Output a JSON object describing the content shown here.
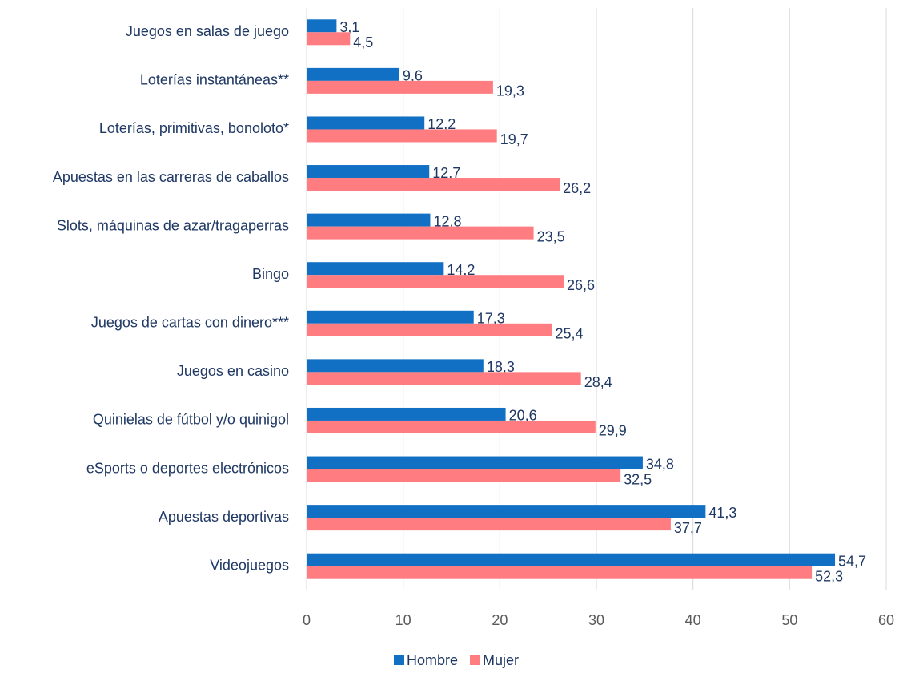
{
  "chart_data": {
    "type": "bar",
    "orientation": "horizontal",
    "categories": [
      "Juegos en salas de juego",
      "Loterías instantáneas**",
      "Loterías, primitivas, bonoloto*",
      "Apuestas en las carreras de caballos",
      "Slots, máquinas de azar/tragaperras",
      "Bingo",
      "Juegos de cartas con dinero***",
      "Juegos en casino",
      "Quinielas de fútbol y/o quinigol",
      "eSports o deportes electrónicos",
      "Apuestas deportivas",
      "Videojuegos"
    ],
    "series": [
      {
        "name": "Hombre",
        "color": "#1170c4",
        "values": [
          3.1,
          9.6,
          12.2,
          12.7,
          12.8,
          14.2,
          17.3,
          18.3,
          20.6,
          34.8,
          41.3,
          54.7
        ],
        "value_labels": [
          "3,1",
          "9,6",
          "12,2",
          "12,7",
          "12,8",
          "14,2",
          "17,3",
          "18,3",
          "20,6",
          "34,8",
          "41,3",
          "54,7"
        ]
      },
      {
        "name": "Mujer",
        "color": "#ff7c80",
        "values": [
          4.5,
          19.3,
          19.7,
          26.2,
          23.5,
          26.6,
          25.4,
          28.4,
          29.9,
          32.5,
          37.7,
          52.3
        ],
        "value_labels": [
          "4,5",
          "19,3",
          "19,7",
          "26,2",
          "23,5",
          "26,6",
          "25,4",
          "28,4",
          "29,9",
          "32,5",
          "37,7",
          "52,3"
        ]
      }
    ],
    "xlim": [
      0,
      60
    ],
    "xticks": [
      0,
      10,
      20,
      30,
      40,
      50,
      60
    ],
    "grid": true,
    "legend": "bottom"
  }
}
